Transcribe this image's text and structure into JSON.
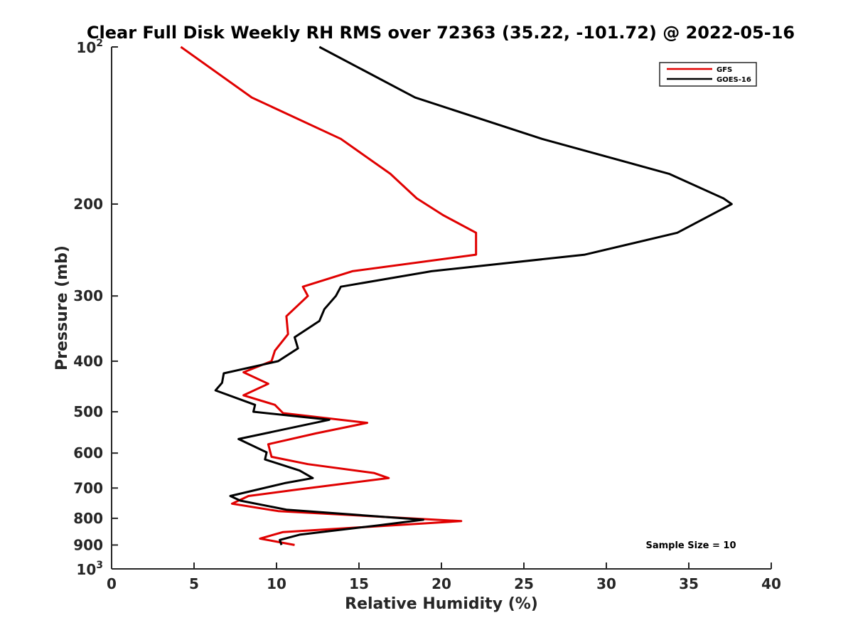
{
  "chart_data": {
    "type": "line",
    "title": "Clear Full Disk Weekly RH RMS over 72363 (35.22, -101.72) @ 2022-05-16",
    "xlabel": "Relative Humidity (%)",
    "ylabel": "Pressure (mb)",
    "xlim": [
      0,
      40
    ],
    "ylim": [
      100,
      1000
    ],
    "yscale": "log",
    "y_reversed": true,
    "grid": false,
    "legend_position": "top-right",
    "xticks": [
      0,
      5,
      10,
      15,
      20,
      25,
      30,
      35,
      40
    ],
    "xtick_labels": [
      "0",
      "5",
      "10",
      "15",
      "20",
      "25",
      "30",
      "35",
      "40"
    ],
    "yticks": [
      {
        "value": 200,
        "label": "200"
      },
      {
        "value": 300,
        "label": "300"
      },
      {
        "value": 400,
        "label": "400"
      },
      {
        "value": 500,
        "label": "500"
      },
      {
        "value": 600,
        "label": "600"
      },
      {
        "value": 700,
        "label": "700"
      },
      {
        "value": 800,
        "label": "800"
      },
      {
        "value": 900,
        "label": "900"
      }
    ],
    "ytick_power_labels": [
      {
        "value": 100,
        "base": "10",
        "exp": "2"
      },
      {
        "value": 1000,
        "base": "10",
        "exp": "3"
      }
    ],
    "annotation": "Sample Size = 10",
    "series": [
      {
        "name": "GFS",
        "color": "#e00000",
        "points": [
          [
            4.2,
            100
          ],
          [
            8.5,
            125
          ],
          [
            13.9,
            150
          ],
          [
            16.9,
            175
          ],
          [
            18.5,
            195
          ],
          [
            20.1,
            210
          ],
          [
            22.1,
            227
          ],
          [
            22.1,
            250
          ],
          [
            14.6,
            269
          ],
          [
            11.6,
            288
          ],
          [
            11.9,
            300
          ],
          [
            10.6,
            328
          ],
          [
            10.7,
            355
          ],
          [
            9.9,
            382
          ],
          [
            9.7,
            400
          ],
          [
            8.0,
            420
          ],
          [
            9.5,
            442
          ],
          [
            8.0,
            465
          ],
          [
            9.9,
            485
          ],
          [
            10.4,
            503
          ],
          [
            15.5,
            525
          ],
          [
            12.4,
            550
          ],
          [
            9.5,
            577
          ],
          [
            9.7,
            610
          ],
          [
            11.9,
            630
          ],
          [
            15.9,
            655
          ],
          [
            16.8,
            670
          ],
          [
            11.2,
            705
          ],
          [
            8.3,
            725
          ],
          [
            7.3,
            750
          ],
          [
            10.1,
            775
          ],
          [
            21.2,
            810
          ],
          [
            10.4,
            850
          ],
          [
            9.0,
            875
          ],
          [
            11.1,
            900
          ]
        ]
      },
      {
        "name": "GOES-16",
        "color": "#000000",
        "points": [
          [
            12.6,
            100
          ],
          [
            18.4,
            125
          ],
          [
            26.1,
            150
          ],
          [
            33.8,
            175
          ],
          [
            37.1,
            195
          ],
          [
            37.6,
            200
          ],
          [
            34.3,
            227
          ],
          [
            28.7,
            250
          ],
          [
            19.4,
            269
          ],
          [
            13.9,
            288
          ],
          [
            13.6,
            300
          ],
          [
            12.9,
            318
          ],
          [
            12.6,
            335
          ],
          [
            11.1,
            360
          ],
          [
            11.3,
            378
          ],
          [
            10.1,
            400
          ],
          [
            6.8,
            422
          ],
          [
            6.7,
            440
          ],
          [
            6.3,
            455
          ],
          [
            8.7,
            485
          ],
          [
            8.6,
            500
          ],
          [
            13.2,
            518
          ],
          [
            7.7,
            564
          ],
          [
            9.4,
            598
          ],
          [
            9.3,
            617
          ],
          [
            11.4,
            648
          ],
          [
            12.2,
            670
          ],
          [
            10.5,
            685
          ],
          [
            7.2,
            725
          ],
          [
            7.8,
            740
          ],
          [
            10.6,
            770
          ],
          [
            18.9,
            805
          ],
          [
            16.2,
            825
          ],
          [
            11.4,
            860
          ],
          [
            10.2,
            880
          ],
          [
            10.3,
            900
          ]
        ]
      }
    ]
  }
}
